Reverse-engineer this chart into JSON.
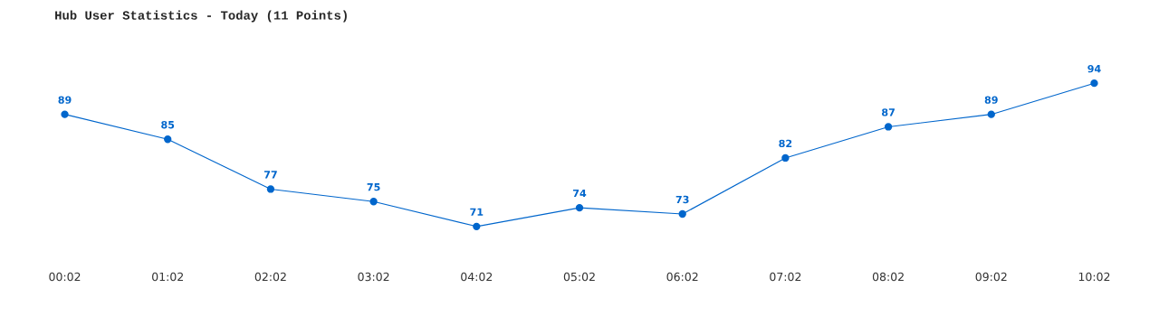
{
  "chart_data": {
    "type": "line",
    "title": "Hub User Statistics - Today (11 Points)",
    "categories": [
      "00:02",
      "01:02",
      "02:02",
      "03:02",
      "04:02",
      "05:02",
      "06:02",
      "07:02",
      "08:02",
      "09:02",
      "10:02"
    ],
    "series": [
      {
        "color": "#0066cc",
        "values": [
          89,
          85,
          77,
          75,
          71,
          74,
          73,
          82,
          87,
          89,
          94
        ]
      }
    ],
    "data_labels": true,
    "marker": "circle",
    "line_style": "solid",
    "grid": false,
    "legend": false,
    "tick_labels": "x"
  }
}
